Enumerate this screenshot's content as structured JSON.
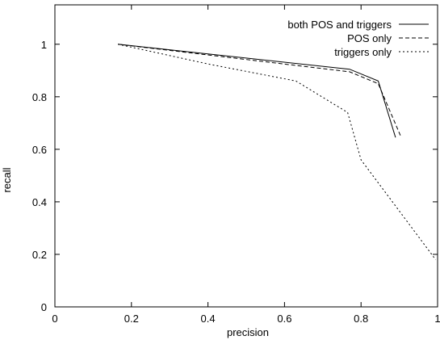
{
  "chart_data": {
    "type": "line",
    "title": "",
    "xlabel": "precision",
    "ylabel": "recall",
    "xlim": [
      0,
      1
    ],
    "ylim": [
      0,
      1.15
    ],
    "x_ticks": [
      "0",
      "0.2",
      "0.4",
      "0.6",
      "0.8",
      "1"
    ],
    "y_ticks": [
      "0",
      "0.2",
      "0.4",
      "0.6",
      "0.8",
      "1"
    ],
    "grid": false,
    "legend_position": "top-right",
    "series": [
      {
        "name": "both POS and triggers",
        "dash": "solid",
        "color": "#000000",
        "points": [
          [
            0.165,
            1.0
          ],
          [
            0.77,
            0.905
          ],
          [
            0.845,
            0.86
          ],
          [
            0.89,
            0.645
          ]
        ]
      },
      {
        "name": "POS only",
        "dash": "dashed",
        "color": "#000000",
        "points": [
          [
            0.165,
            1.0
          ],
          [
            0.77,
            0.895
          ],
          [
            0.845,
            0.85
          ],
          [
            0.905,
            0.645
          ]
        ]
      },
      {
        "name": "triggers only",
        "dash": "dotted",
        "color": "#000000",
        "points": [
          [
            0.165,
            1.0
          ],
          [
            0.4,
            0.925
          ],
          [
            0.63,
            0.86
          ],
          [
            0.765,
            0.74
          ],
          [
            0.8,
            0.56
          ],
          [
            0.9,
            0.365
          ],
          [
            0.995,
            0.18
          ]
        ]
      }
    ]
  }
}
